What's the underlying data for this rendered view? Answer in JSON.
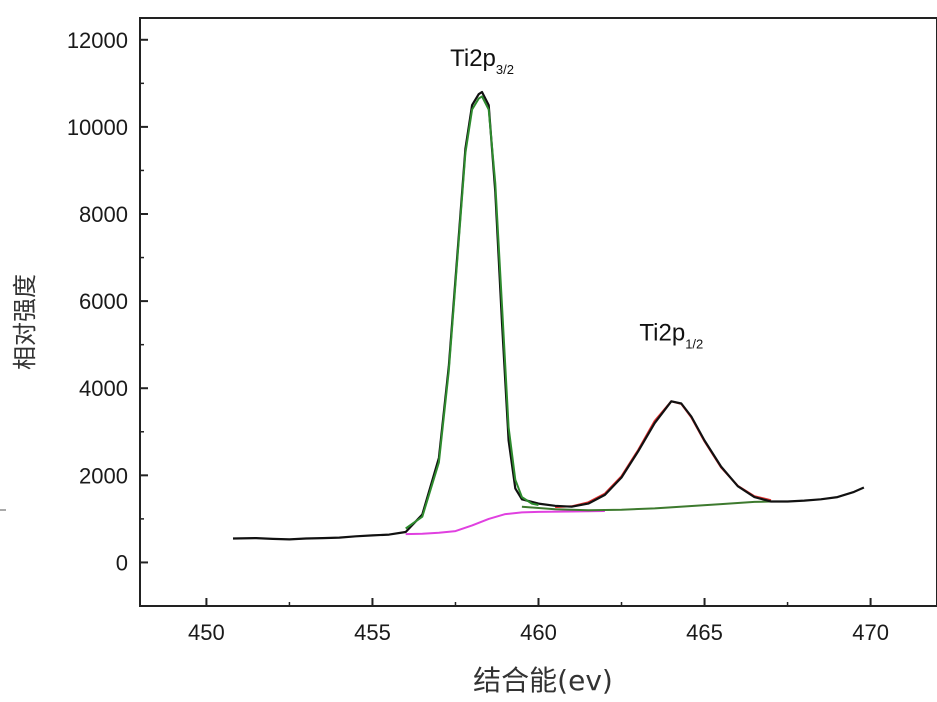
{
  "chart_data": {
    "type": "line",
    "title": "",
    "xlabel": "结合能(ev)",
    "ylabel": "相对强度",
    "xlim": [
      448,
      472
    ],
    "ylim": [
      -1000,
      12500
    ],
    "xticks": [
      450,
      455,
      460,
      465,
      470
    ],
    "yticks": [
      0,
      2000,
      4000,
      6000,
      8000,
      10000,
      12000
    ],
    "grid": false,
    "annotations": [
      {
        "text": "Ti2p",
        "sub": "3/2",
        "x": 458.3,
        "y": 11400
      },
      {
        "text": "Ti2p",
        "sub": "1/2",
        "x": 464.0,
        "y": 5100
      }
    ],
    "series": [
      {
        "role": "measured spectrum",
        "color": "#111111",
        "x": [
          450.8,
          451.5,
          452.0,
          452.5,
          453.0,
          453.5,
          454.0,
          454.5,
          455.0,
          455.5,
          456.0,
          456.5,
          457.0,
          457.3,
          457.6,
          457.8,
          458.0,
          458.2,
          458.3,
          458.5,
          458.7,
          458.9,
          459.1,
          459.3,
          459.5,
          460.0,
          460.5,
          461.0,
          461.5,
          462.0,
          462.5,
          463.0,
          463.5,
          464.0,
          464.3,
          464.6,
          465.0,
          465.5,
          466.0,
          466.5,
          467.0,
          467.5,
          468.0,
          468.5,
          469.0,
          469.5,
          469.8
        ],
        "y": [
          550,
          560,
          540,
          530,
          550,
          560,
          570,
          600,
          620,
          640,
          700,
          1100,
          2400,
          4500,
          7500,
          9500,
          10500,
          10750,
          10800,
          10500,
          8500,
          5500,
          2800,
          1700,
          1450,
          1350,
          1300,
          1280,
          1350,
          1550,
          1950,
          2550,
          3200,
          3700,
          3650,
          3350,
          2800,
          2200,
          1750,
          1500,
          1400,
          1400,
          1420,
          1450,
          1500,
          1620,
          1720
        ]
      },
      {
        "role": "Ti2p3/2 fit",
        "color": "#2e8b2e",
        "x": [
          456.0,
          456.5,
          457.0,
          457.3,
          457.6,
          457.8,
          458.0,
          458.2,
          458.3,
          458.5,
          458.7,
          458.9,
          459.1,
          459.3,
          459.5,
          459.8,
          460.0
        ],
        "y": [
          780,
          1050,
          2300,
          4400,
          7400,
          9400,
          10400,
          10650,
          10700,
          10400,
          8700,
          5900,
          3100,
          1900,
          1500,
          1350,
          1320
        ]
      },
      {
        "role": "Ti2p1/2 fit",
        "color": "#e03030",
        "x": [
          460.5,
          461.0,
          461.5,
          462.0,
          462.5,
          463.0,
          463.5,
          464.0,
          464.3,
          464.6,
          465.0,
          465.5,
          466.0,
          466.5,
          467.0
        ],
        "y": [
          1270,
          1290,
          1380,
          1580,
          1980,
          2580,
          3250,
          3700,
          3640,
          3330,
          2780,
          2180,
          1760,
          1520,
          1430
        ]
      },
      {
        "role": "background (green)",
        "color": "#3d7a2e",
        "x": [
          459.5,
          460.5,
          461.5,
          462.5,
          463.5,
          464.5,
          465.5,
          466.5,
          467.0
        ],
        "y": [
          1280,
          1220,
          1200,
          1210,
          1240,
          1290,
          1340,
          1390,
          1400
        ]
      },
      {
        "role": "background (magenta)",
        "color": "#e040e0",
        "x": [
          456.0,
          456.5,
          457.0,
          457.5,
          458.0,
          458.5,
          459.0,
          459.5,
          460.0,
          461.0,
          462.0
        ],
        "y": [
          650,
          660,
          680,
          720,
          850,
          1000,
          1110,
          1150,
          1160,
          1170,
          1180
        ]
      }
    ]
  }
}
